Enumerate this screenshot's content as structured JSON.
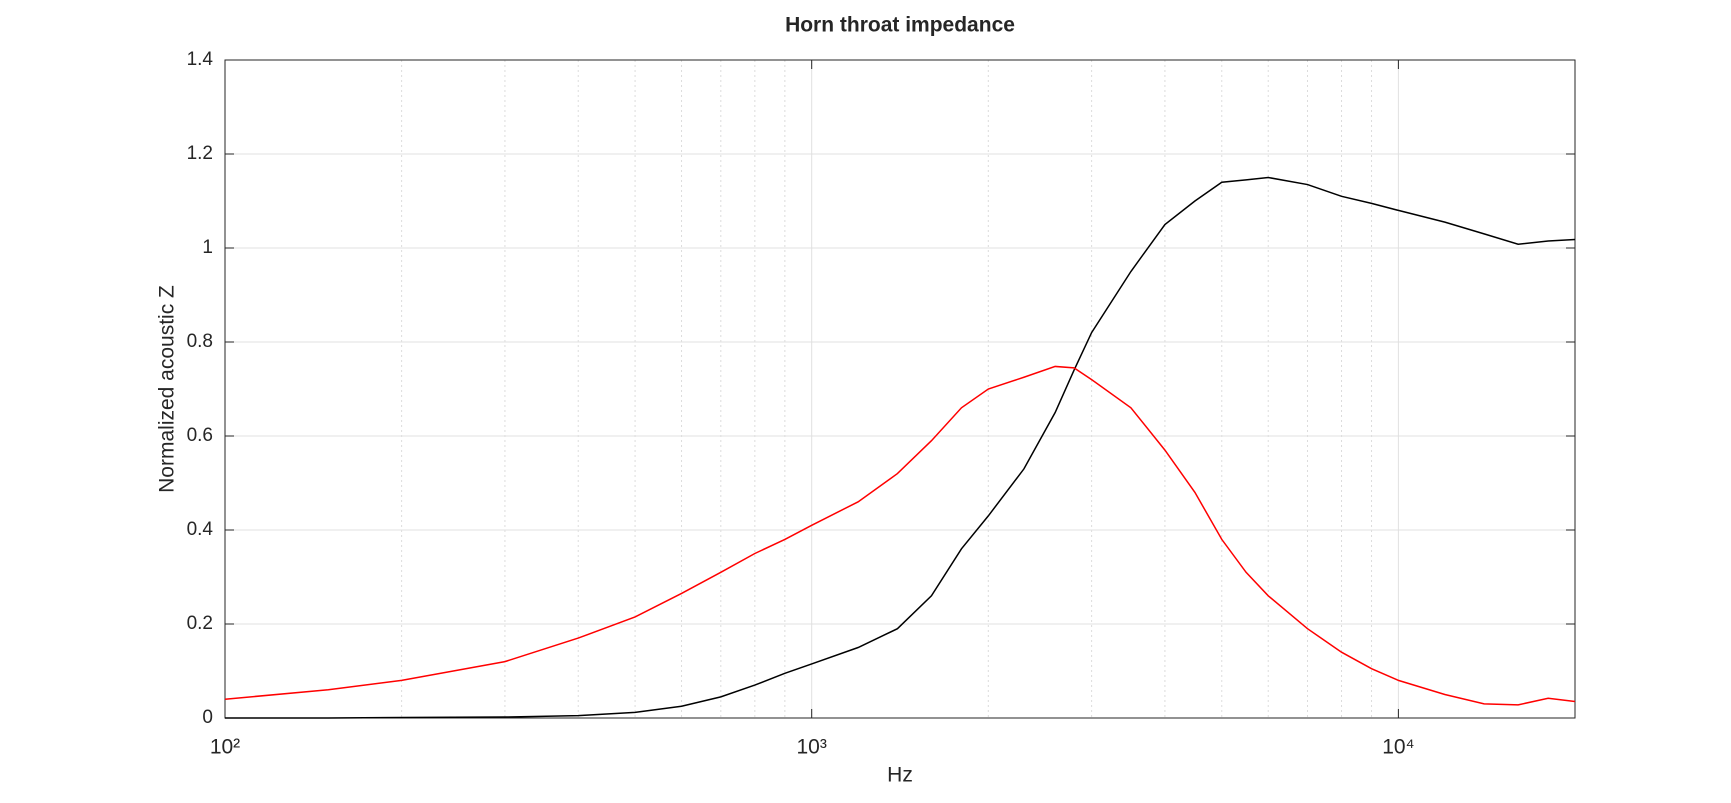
{
  "chart_data": {
    "type": "line",
    "title": "Horn throat impedance",
    "x_label": "Hz",
    "y_label": "Normalized acoustic Z",
    "x_log": true,
    "grid": true,
    "xlim": [
      100,
      20000
    ],
    "xticks": [
      {
        "value": 100,
        "label": "10²"
      },
      {
        "value": 1000,
        "label": "10³"
      },
      {
        "value": 10000,
        "label": "10⁴"
      }
    ],
    "xminor": [
      200,
      300,
      400,
      500,
      600,
      700,
      800,
      900,
      2000,
      3000,
      4000,
      5000,
      6000,
      7000,
      8000,
      9000
    ],
    "ylim": [
      0,
      1.4
    ],
    "yticks": [
      0,
      0.2,
      0.4,
      0.6,
      0.8,
      1,
      1.2,
      1.4
    ],
    "x": [
      100,
      150,
      200,
      300,
      400,
      500,
      600,
      700,
      800,
      900,
      1000,
      1200,
      1400,
      1600,
      1800,
      2000,
      2300,
      2600,
      2800,
      3000,
      3500,
      4000,
      4500,
      5000,
      5500,
      6000,
      7000,
      8000,
      9000,
      10000,
      12000,
      14000,
      16000,
      18000,
      20000
    ],
    "series": [
      {
        "color": "#000000",
        "values": [
          0,
          0,
          0.001,
          0.002,
          0.005,
          0.012,
          0.025,
          0.045,
          0.07,
          0.095,
          0.115,
          0.15,
          0.19,
          0.26,
          0.36,
          0.43,
          0.53,
          0.65,
          0.74,
          0.82,
          0.95,
          1.05,
          1.1,
          1.14,
          1.145,
          1.15,
          1.135,
          1.11,
          1.095,
          1.08,
          1.055,
          1.03,
          1.008,
          1.015,
          1.018
        ]
      },
      {
        "color": "#ff0000",
        "values": [
          0.04,
          0.06,
          0.08,
          0.12,
          0.17,
          0.215,
          0.265,
          0.31,
          0.35,
          0.38,
          0.41,
          0.46,
          0.52,
          0.59,
          0.66,
          0.7,
          0.725,
          0.748,
          0.745,
          0.72,
          0.66,
          0.57,
          0.48,
          0.38,
          0.31,
          0.26,
          0.19,
          0.14,
          0.105,
          0.08,
          0.05,
          0.03,
          0.028,
          0.042,
          0.035
        ]
      }
    ]
  }
}
